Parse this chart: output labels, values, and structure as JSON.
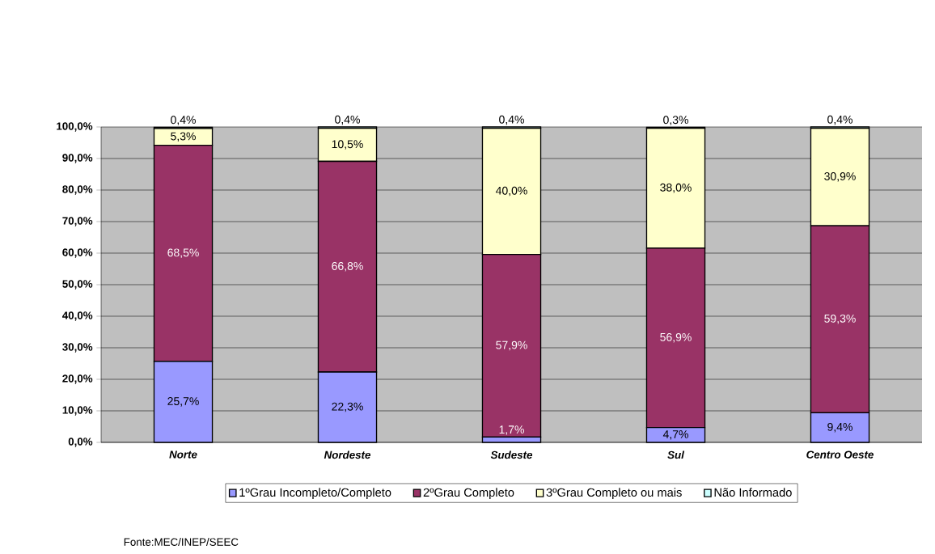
{
  "chart_data": {
    "type": "bar",
    "stacked": true,
    "categories": [
      "Norte",
      "Nordeste",
      "Sudeste",
      "Sul",
      "Centro Oeste"
    ],
    "series": [
      {
        "name": "1ºGrau Incompleto/Completo",
        "color": "#9999ff",
        "values": [
          25.7,
          22.3,
          1.7,
          4.7,
          9.4
        ],
        "value_labels": [
          "25,7%",
          "22,3%",
          "1,7%",
          "4,7%",
          "9,4%"
        ]
      },
      {
        "name": "2ºGrau Completo",
        "color": "#993366",
        "values": [
          68.5,
          66.8,
          57.9,
          56.9,
          59.3
        ],
        "value_labels": [
          "68,5%",
          "66,8%",
          "57,9%",
          "56,9%",
          "59,3%"
        ]
      },
      {
        "name": "3ºGrau Completo ou mais",
        "color": "#ffffcc",
        "values": [
          5.3,
          10.5,
          40.0,
          38.0,
          30.9
        ],
        "value_labels": [
          "5,3%",
          "10,5%",
          "40,0%",
          "38,0%",
          "30,9%"
        ]
      },
      {
        "name": "Não Informado",
        "color": "#ccffff",
        "values": [
          0.4,
          0.4,
          0.4,
          0.3,
          0.4
        ],
        "value_labels": [
          "0,4%",
          "0,4%",
          "0,4%",
          "0,3%",
          "0,4%"
        ]
      }
    ],
    "ylim": [
      0,
      100
    ],
    "yticks": [
      {
        "value": 0,
        "label": "0,0%"
      },
      {
        "value": 10,
        "label": "10,0%"
      },
      {
        "value": 20,
        "label": "20,0%"
      },
      {
        "value": 30,
        "label": "30,0%"
      },
      {
        "value": 40,
        "label": "40,0%"
      },
      {
        "value": 50,
        "label": "50,0%"
      },
      {
        "value": 60,
        "label": "60,0%"
      },
      {
        "value": 70,
        "label": "70,0%"
      },
      {
        "value": 80,
        "label": "80,0%"
      },
      {
        "value": 90,
        "label": "90,0%"
      },
      {
        "value": 100,
        "label": "100,0%"
      }
    ],
    "grid": "y",
    "legend": "bottom",
    "annotations": [
      "Fonte:MEC/INEP/SEEC"
    ]
  }
}
